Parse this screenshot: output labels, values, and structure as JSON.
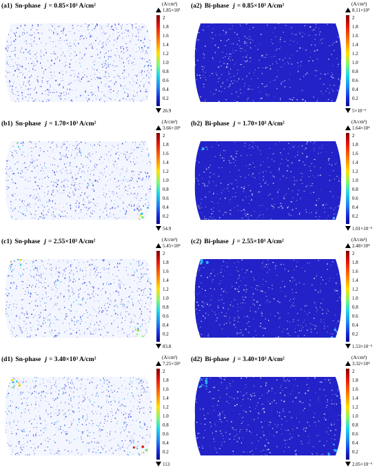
{
  "colors": {
    "sn_background": "#ffffff",
    "sn_dots": "#2a3fe0",
    "bi_fill": "#2222c8",
    "bi_specks": "#ffffff"
  },
  "panels": [
    {
      "label": "(a1)",
      "phase": "Sn-phase",
      "j_symbol": "j",
      "j_text": "= 0.85×10³ A/cm²",
      "unit": "(A/cm²)",
      "max": "1.85×10³",
      "min": "26.9",
      "type": "sn",
      "hot": 0
    },
    {
      "label": "(a2)",
      "phase": "Bi-phase",
      "j_symbol": "j",
      "j_text": "= 0.85×10³ A/cm²",
      "unit": "(A/cm²)",
      "max": "8.11×10³",
      "min": "5×10⁻⁶",
      "type": "bi",
      "hot": 0
    },
    {
      "label": "(b1)",
      "phase": "Sn-phase",
      "j_symbol": "j",
      "j_text": "= 1.70×10³ A/cm²",
      "unit": "(A/cm²)",
      "max": "3.66×10⁴",
      "min": "54.9",
      "type": "sn",
      "hot": 1
    },
    {
      "label": "(b2)",
      "phase": "Bi-phase",
      "j_symbol": "j",
      "j_text": "= 1.70×10³ A/cm²",
      "unit": "(A/cm²)",
      "max": "1.64×10⁴",
      "min": "1.01×10⁻⁵",
      "type": "bi",
      "hot": 1
    },
    {
      "label": "(c1)",
      "phase": "Sn-phase",
      "j_symbol": "j",
      "j_text": "= 2.55×10³ A/cm²",
      "unit": "(A/cm²)",
      "max": "5.45×10⁴",
      "min": "83.8",
      "type": "sn",
      "hot": 2
    },
    {
      "label": "(c2)",
      "phase": "Bi-phase",
      "j_symbol": "j",
      "j_text": "= 2.55×10³ A/cm²",
      "unit": "(A/cm²)",
      "max": "2.48×10⁴",
      "min": "1.53×10⁻⁵",
      "type": "bi",
      "hot": 2
    },
    {
      "label": "(d1)",
      "phase": "Sn-phase",
      "j_symbol": "j",
      "j_text": "= 3.40×10³ A/cm²",
      "unit": "(A/cm²)",
      "max": "7.25×10⁴",
      "min": "113",
      "type": "sn",
      "hot": 3
    },
    {
      "label": "(d2)",
      "phase": "Bi-phase",
      "j_symbol": "j",
      "j_text": "= 3.40×10³ A/cm²",
      "unit": "(A/cm²)",
      "max": "3.32×10⁴",
      "min": "2.05×10⁻⁵",
      "type": "bi",
      "hot": 3
    }
  ],
  "ticks": [
    "2",
    "1.8",
    "1.6",
    "1.4",
    "1.2",
    "1.0",
    "0.8",
    "0.6",
    "0.4",
    "0.2"
  ]
}
